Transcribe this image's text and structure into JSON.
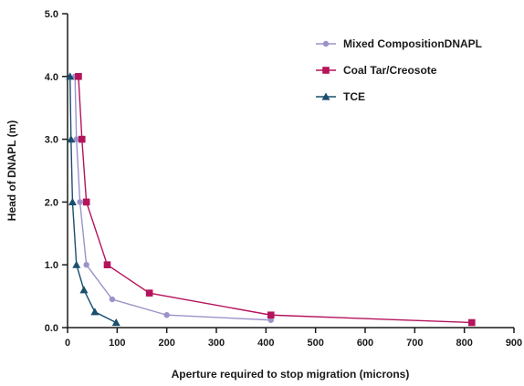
{
  "chart_data": {
    "type": "line",
    "xlabel": "Aperture required to stop migration (microns)",
    "ylabel": "Head of DNAPL (m)",
    "xlim": [
      0,
      900
    ],
    "ylim": [
      0,
      5
    ],
    "x_ticks": [
      "0",
      "100",
      "200",
      "300",
      "400",
      "500",
      "600",
      "700",
      "800",
      "900"
    ],
    "y_ticks": [
      "0.0",
      "1.0",
      "2.0",
      "3.0",
      "4.0",
      "5.0"
    ],
    "grid": false,
    "legend_position": "top-right",
    "series": [
      {
        "name": "Mixed CompositionDNAPL",
        "marker": "circle",
        "color": "#9b93c9",
        "points": [
          {
            "x": 15,
            "y": 4.0
          },
          {
            "x": 18,
            "y": 3.0
          },
          {
            "x": 25,
            "y": 2.0
          },
          {
            "x": 38,
            "y": 1.0
          },
          {
            "x": 90,
            "y": 0.45
          },
          {
            "x": 200,
            "y": 0.2
          },
          {
            "x": 410,
            "y": 0.12
          }
        ]
      },
      {
        "name": "Coal Tar/Creosote",
        "marker": "square",
        "color": "#b5135c",
        "points": [
          {
            "x": 22,
            "y": 4.0
          },
          {
            "x": 29,
            "y": 3.0
          },
          {
            "x": 38,
            "y": 2.0
          },
          {
            "x": 80,
            "y": 1.0
          },
          {
            "x": 165,
            "y": 0.55
          },
          {
            "x": 410,
            "y": 0.2
          },
          {
            "x": 815,
            "y": 0.08
          }
        ]
      },
      {
        "name": "TCE",
        "marker": "triangle",
        "color": "#1a4f6e",
        "points": [
          {
            "x": 5,
            "y": 4.0
          },
          {
            "x": 7,
            "y": 3.0
          },
          {
            "x": 10,
            "y": 2.0
          },
          {
            "x": 18,
            "y": 1.0
          },
          {
            "x": 33,
            "y": 0.6
          },
          {
            "x": 55,
            "y": 0.25
          },
          {
            "x": 98,
            "y": 0.08
          }
        ]
      }
    ]
  }
}
